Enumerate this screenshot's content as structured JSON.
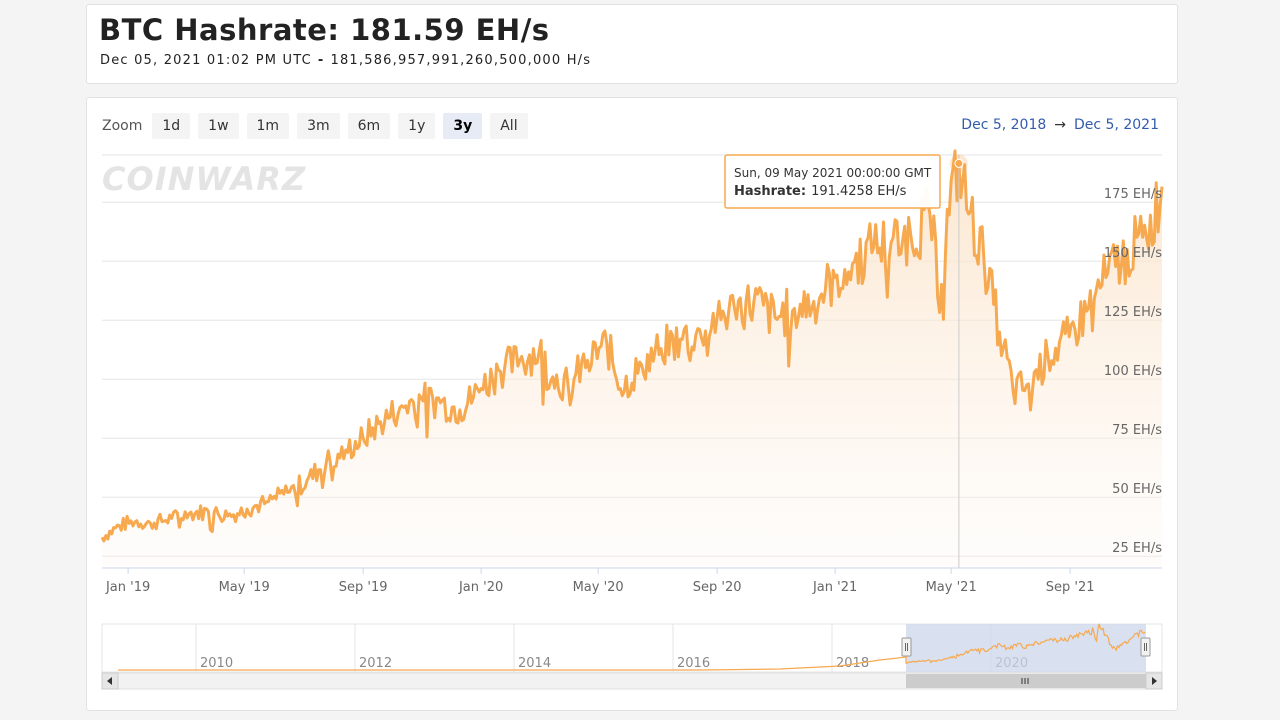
{
  "header": {
    "title": "BTC Hashrate: 181.59 EH/s",
    "subtitle_date": "Dec 05, 2021 01:02 PM UTC",
    "subtitle_value": "181,586,957,991,260,500,000 H/s"
  },
  "zoom": {
    "label": "Zoom",
    "buttons": [
      "1d",
      "1w",
      "1m",
      "3m",
      "6m",
      "1y",
      "3y",
      "All"
    ],
    "active": "3y"
  },
  "range": {
    "from": "Dec 5, 2018",
    "arrow": "→",
    "to": "Dec 5, 2021"
  },
  "watermark": "COINWARZ",
  "tooltip": {
    "date": "Sun, 09 May 2021 00:00:00 GMT",
    "label": "Hashrate:",
    "value": "191.4258 EH/s"
  },
  "colors": {
    "line": "#f7a94f",
    "fill_top": "#fbe3c8",
    "selected_range": "#ccd6eb",
    "link": "#335cad"
  },
  "chart_data": {
    "type": "area",
    "title": "BTC Hashrate",
    "ylabel": "",
    "ylim": [
      20,
      195
    ],
    "y_ticks": [
      25,
      50,
      75,
      100,
      125,
      150,
      175
    ],
    "y_tick_labels": [
      "25 EH/s",
      "50 EH/s",
      "75 EH/s",
      "100 EH/s",
      "125 EH/s",
      "150 EH/s",
      "175 EH/s"
    ],
    "x_range": [
      "2018-12-05",
      "2021-12-05"
    ],
    "x_ticks": [
      "2019-01-01",
      "2019-05-01",
      "2019-09-01",
      "2020-01-01",
      "2020-05-01",
      "2020-09-01",
      "2021-01-01",
      "2021-05-01",
      "2021-09-01"
    ],
    "x_tick_labels": [
      "Jan '19",
      "May '19",
      "Sep '19",
      "Jan '20",
      "May '20",
      "Sep '20",
      "Jan '21",
      "May '21",
      "Sep '21"
    ],
    "series": [
      {
        "name": "Hashrate",
        "points": [
          [
            "2018-12-05",
            33
          ],
          [
            "2018-12-20",
            37
          ],
          [
            "2019-01-05",
            40
          ],
          [
            "2019-01-25",
            39
          ],
          [
            "2019-02-15",
            41
          ],
          [
            "2019-03-05",
            43
          ],
          [
            "2019-03-25",
            44
          ],
          [
            "2019-04-15",
            42
          ],
          [
            "2019-05-05",
            45
          ],
          [
            "2019-05-25",
            48
          ],
          [
            "2019-06-15",
            52
          ],
          [
            "2019-07-05",
            57
          ],
          [
            "2019-07-25",
            65
          ],
          [
            "2019-08-15",
            70
          ],
          [
            "2019-09-01",
            75
          ],
          [
            "2019-09-20",
            82
          ],
          [
            "2019-10-10",
            88
          ],
          [
            "2019-10-31",
            92
          ],
          [
            "2019-11-20",
            90
          ],
          [
            "2019-12-10",
            87
          ],
          [
            "2020-01-01",
            96
          ],
          [
            "2020-01-20",
            104
          ],
          [
            "2020-02-10",
            108
          ],
          [
            "2020-03-01",
            112
          ],
          [
            "2020-03-15",
            101
          ],
          [
            "2020-04-01",
            97
          ],
          [
            "2020-04-20",
            108
          ],
          [
            "2020-05-10",
            115
          ],
          [
            "2020-05-25",
            96
          ],
          [
            "2020-06-15",
            106
          ],
          [
            "2020-07-05",
            113
          ],
          [
            "2020-07-25",
            117
          ],
          [
            "2020-08-15",
            121
          ],
          [
            "2020-09-01",
            126
          ],
          [
            "2020-09-20",
            130
          ],
          [
            "2020-10-10",
            133
          ],
          [
            "2020-10-31",
            126
          ],
          [
            "2020-11-20",
            130
          ],
          [
            "2020-12-10",
            133
          ],
          [
            "2021-01-01",
            143
          ],
          [
            "2021-01-20",
            149
          ],
          [
            "2021-02-10",
            156
          ],
          [
            "2021-03-01",
            158
          ],
          [
            "2021-03-20",
            162
          ],
          [
            "2021-04-10",
            170
          ],
          [
            "2021-04-18",
            135
          ],
          [
            "2021-04-28",
            172
          ],
          [
            "2021-05-09",
            191.4258
          ],
          [
            "2021-05-20",
            170
          ],
          [
            "2021-06-05",
            150
          ],
          [
            "2021-06-20",
            120
          ],
          [
            "2021-07-05",
            95
          ],
          [
            "2021-07-20",
            98
          ],
          [
            "2021-08-10",
            110
          ],
          [
            "2021-08-31",
            118
          ],
          [
            "2021-09-20",
            130
          ],
          [
            "2021-10-10",
            145
          ],
          [
            "2021-10-31",
            155
          ],
          [
            "2021-11-20",
            160
          ],
          [
            "2021-12-05",
            181.59
          ]
        ]
      }
    ],
    "navigator": {
      "x_tick_labels": [
        "2010",
        "2012",
        "2014",
        "2016",
        "2018",
        "2020"
      ],
      "selected_from": "2018-12-05",
      "selected_to": "2021-12-05"
    }
  }
}
